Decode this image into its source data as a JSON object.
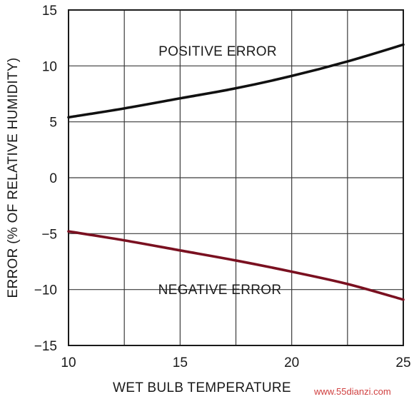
{
  "chart_data": {
    "type": "line",
    "xlabel": "WET BULB TEMPERATURE",
    "ylabel": "ERROR (% OF RELATIVE HUMIDITY)",
    "xlim": [
      10,
      25
    ],
    "ylim": [
      -15,
      15
    ],
    "xticks": [
      10,
      15,
      20,
      25
    ],
    "yticks": [
      15,
      10,
      5,
      0,
      -5,
      -10,
      -15
    ],
    "xtick_labels": [
      "10",
      "15",
      "20",
      "25"
    ],
    "ytick_labels": [
      "15",
      "10",
      "5",
      "0",
      "−5",
      "−10",
      "−15"
    ],
    "grid": true,
    "series": [
      {
        "name": "POSITIVE ERROR",
        "color": "#111111",
        "x": [
          10,
          12.5,
          15,
          17.5,
          20,
          22.5,
          25
        ],
        "y": [
          5.4,
          6.2,
          7.1,
          8.0,
          9.1,
          10.4,
          11.9
        ]
      },
      {
        "name": "NEGATIVE ERROR",
        "color": "#7a1020",
        "x": [
          10,
          12.5,
          15,
          17.5,
          20,
          22.5,
          25
        ],
        "y": [
          -4.8,
          -5.6,
          -6.5,
          -7.4,
          -8.4,
          -9.5,
          -10.9
        ]
      }
    ]
  },
  "watermark": "www.55dianzi.com"
}
